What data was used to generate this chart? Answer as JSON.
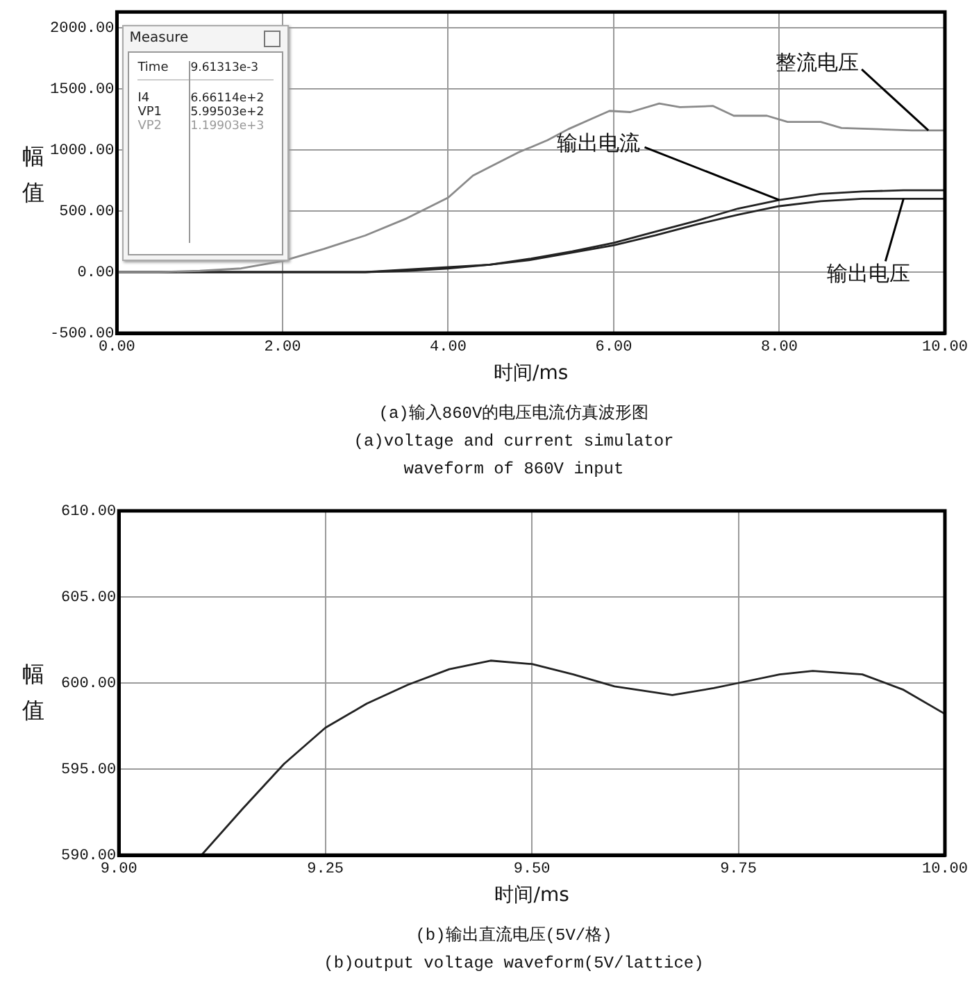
{
  "chart_data": [
    {
      "type": "line",
      "xlabel": "时间/ms",
      "ylabel": "幅值",
      "grid": true,
      "legend": false,
      "marker": "none",
      "line_style": "solid",
      "xlim": [
        0,
        10
      ],
      "ylim": [
        -500,
        2130
      ],
      "xticks": [
        {
          "value": 0,
          "label": "0.00"
        },
        {
          "value": 2,
          "label": "2.00"
        },
        {
          "value": 4,
          "label": "4.00"
        },
        {
          "value": 6,
          "label": "6.00"
        },
        {
          "value": 8,
          "label": "8.00"
        },
        {
          "value": 10,
          "label": "10.00"
        }
      ],
      "yticks": [
        {
          "value": -500,
          "label": "-500.00"
        },
        {
          "value": 0,
          "label": "0.00"
        },
        {
          "value": 500,
          "label": "500.00"
        },
        {
          "value": 1000,
          "label": "1000.00"
        },
        {
          "value": 1500,
          "label": "1500.00"
        },
        {
          "value": 2000,
          "label": "2000.00"
        }
      ],
      "annotations": [
        "Measure",
        "Time",
        "9.61313e-3",
        "I4",
        "6.66114e+2",
        "VP1",
        "5.99503e+2",
        "VP2",
        "1.19903e+3",
        "(a)输入860V的电压电流仿真波形图",
        "(a)voltage and current simulator",
        "waveform of 860V input"
      ],
      "series": [
        {
          "name": "整流电压",
          "color": "#8a8a8a",
          "x": [
            0,
            0.5,
            1.0,
            1.5,
            2.0,
            2.5,
            3.0,
            3.5,
            4.0,
            4.3,
            4.5,
            4.85,
            5.2,
            5.45,
            5.75,
            5.95,
            6.2,
            6.55,
            6.8,
            7.2,
            7.45,
            7.85,
            8.1,
            8.5,
            8.75,
            9.2,
            9.6,
            10
          ],
          "values": [
            0,
            0,
            10,
            30,
            90,
            190,
            300,
            440,
            610,
            790,
            860,
            980,
            1080,
            1170,
            1260,
            1320,
            1310,
            1380,
            1350,
            1360,
            1280,
            1280,
            1230,
            1230,
            1180,
            1170,
            1160,
            1160
          ]
        },
        {
          "name": "输出电流",
          "color": "#222222",
          "x": [
            0,
            3,
            3.5,
            4,
            4.5,
            5,
            5.5,
            6,
            6.5,
            7,
            7.5,
            8,
            8.5,
            9,
            9.5,
            10
          ],
          "values": [
            0,
            0,
            20,
            40,
            60,
            110,
            170,
            240,
            330,
            420,
            520,
            590,
            640,
            660,
            670,
            670
          ]
        },
        {
          "name": "输出电压",
          "color": "#222222",
          "x": [
            0,
            3,
            3.5,
            4,
            4.5,
            5,
            5.5,
            6,
            6.5,
            7,
            7.5,
            8,
            8.5,
            9,
            9.5,
            10
          ],
          "values": [
            0,
            0,
            10,
            30,
            60,
            100,
            160,
            220,
            300,
            390,
            470,
            540,
            580,
            600,
            600,
            600
          ]
        }
      ]
    },
    {
      "type": "line",
      "xlabel": "时间/ms",
      "ylabel": "幅值",
      "grid": true,
      "legend": false,
      "marker": "none",
      "line_style": "solid",
      "xlim": [
        9,
        10
      ],
      "ylim": [
        590,
        610
      ],
      "xticks": [
        {
          "value": 9,
          "label": "9.00"
        },
        {
          "value": 9.25,
          "label": "9.25"
        },
        {
          "value": 9.5,
          "label": "9.50"
        },
        {
          "value": 9.75,
          "label": "9.75"
        },
        {
          "value": 10,
          "label": "10.00"
        }
      ],
      "yticks": [
        {
          "value": 590,
          "label": "590.00"
        },
        {
          "value": 595,
          "label": "595.00"
        },
        {
          "value": 600,
          "label": "600.00"
        },
        {
          "value": 605,
          "label": "605.00"
        },
        {
          "value": 610,
          "label": "610.00"
        }
      ],
      "annotations": [
        "(b)输出直流电压(5V/格)",
        "(b)output voltage waveform(5V/lattice)"
      ],
      "series": [
        {
          "color": "#222222",
          "x": [
            9.1,
            9.15,
            9.2,
            9.25,
            9.3,
            9.35,
            9.4,
            9.45,
            9.5,
            9.55,
            9.6,
            9.67,
            9.72,
            9.75,
            9.8,
            9.84,
            9.9,
            9.95,
            10
          ],
          "values": [
            590,
            592.7,
            595.3,
            597.4,
            598.8,
            599.9,
            600.8,
            601.3,
            601.1,
            600.5,
            599.8,
            599.3,
            599.7,
            600.0,
            600.5,
            600.7,
            600.5,
            599.6,
            598.2
          ]
        }
      ]
    }
  ]
}
